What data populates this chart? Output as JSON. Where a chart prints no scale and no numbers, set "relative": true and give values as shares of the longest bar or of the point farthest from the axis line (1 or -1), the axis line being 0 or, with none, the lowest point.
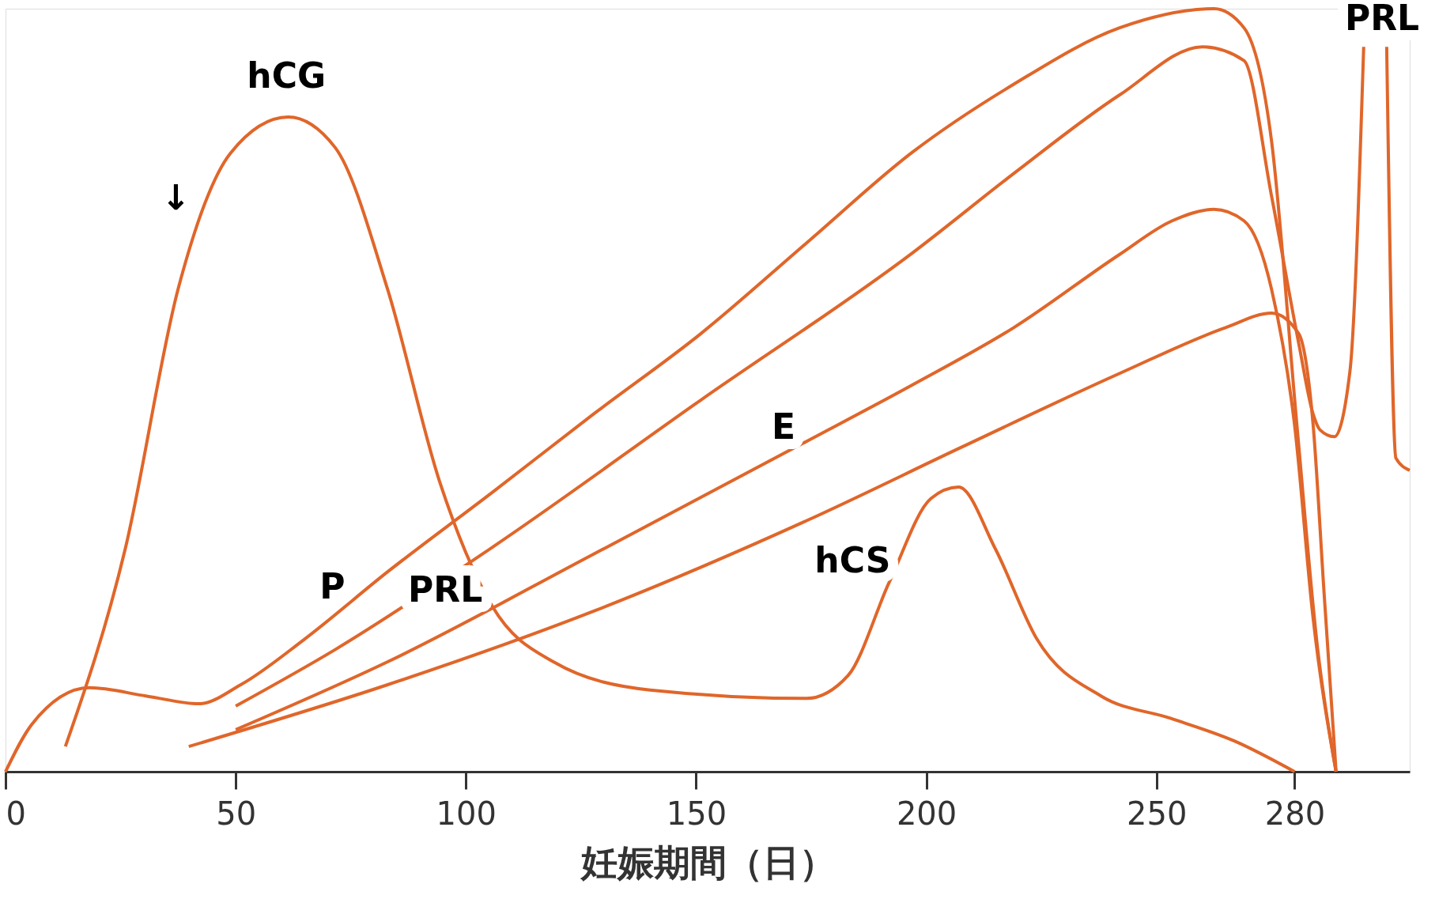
{
  "chart_data": {
    "type": "line",
    "relative": true,
    "xlabel": "妊娠期間（日）",
    "xlim": [
      0,
      305
    ],
    "xticks": [
      0,
      50,
      100,
      150,
      200,
      250,
      280
    ],
    "grid": false,
    "legend": false,
    "tick_labels": "x",
    "marker": "none",
    "line_style": "solid",
    "series": [
      {
        "color": "#e0662a",
        "x": [
          13,
          26,
          37.5,
          48.9,
          61.4,
          71.6,
          83,
          94.3,
          105.7,
          119,
          140,
          174,
          183,
          192,
          201,
          207,
          215,
          224,
          238,
          253,
          267,
          280
        ],
        "values": [
          0.033,
          0.292,
          0.633,
          0.811,
          0.858,
          0.818,
          0.632,
          0.38,
          0.217,
          0.144,
          0.107,
          0.096,
          0.126,
          0.249,
          0.358,
          0.373,
          0.292,
          0.174,
          0.099,
          0.07,
          0.04,
          0.0
        ]
      },
      {
        "color": "#e0662a",
        "x": [
          0,
          5.7,
          18.2,
          30.7,
          42,
          51.1,
          64.8,
          83,
          105.7,
          128,
          151,
          174,
          197,
          219,
          242,
          262.5,
          269,
          275,
          280.5,
          285,
          289
        ],
        "values": [
          0.0,
          0.062,
          0.11,
          0.099,
          0.089,
          0.114,
          0.173,
          0.262,
          0.366,
          0.47,
          0.574,
          0.693,
          0.812,
          0.901,
          0.975,
          1.0,
          0.975,
          0.826,
          0.454,
          0.161,
          0.0
        ]
      },
      {
        "color": "#e0662a",
        "x": [
          50,
          71.6,
          105.7,
          151,
          197,
          219,
          242,
          260,
          269,
          275,
          280.9,
          284,
          285.5,
          288.6,
          292,
          295,
          297.5,
          300,
          302,
          305
        ],
        "values": [
          0.086,
          0.16,
          0.294,
          0.487,
          0.68,
          0.784,
          0.887,
          0.95,
          0.932,
          0.754,
          0.561,
          0.469,
          0.448,
          0.439,
          0.524,
          0.95,
          null,
          0.95,
          0.411,
          0.395
        ]
      },
      {
        "color": "#e0662a",
        "x": [
          50,
          83,
          128,
          174,
          197,
          219,
          242,
          253.4,
          262.5,
          269,
          275,
          280,
          284,
          289
        ],
        "values": [
          0.055,
          0.144,
          0.286,
          0.433,
          0.507,
          0.582,
          0.678,
          0.722,
          0.737,
          0.722,
          0.632,
          0.454,
          0.202,
          0.0
        ]
      },
      {
        "color": "#e0662a",
        "x": [
          39.8,
          83,
          128,
          174,
          207.9,
          242,
          265,
          275,
          280.9,
          284,
          286.4,
          289
        ],
        "values": [
          0.033,
          0.114,
          0.211,
          0.329,
          0.426,
          0.522,
          0.582,
          0.601,
          0.574,
          0.456,
          0.234,
          0.0
        ]
      }
    ],
    "annotations": [
      "hCG",
      "P",
      "PRL",
      "E",
      "hCS",
      "PRL",
      "↓"
    ]
  }
}
